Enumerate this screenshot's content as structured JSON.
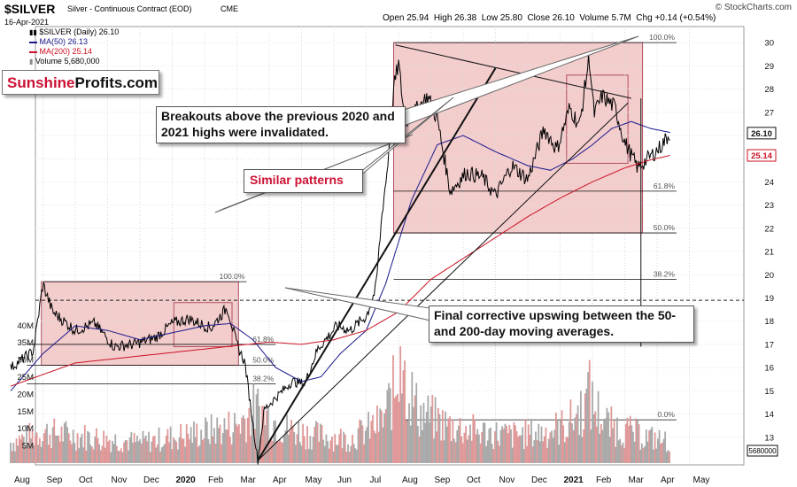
{
  "header": {
    "symbol": "$SILVER",
    "description": "Silver - Continuous Contract (EOD)",
    "exchange": "CME",
    "date": "16-Apr-2021",
    "ohlc": "Open 25.94  High 26.38  Low 25.80  Close 26.10  Volume 5.7M  Chg +0.14 (+0.54%)",
    "watermark": "© StockCharts.com"
  },
  "legend": {
    "main": "$SILVER (Daily) 26.10",
    "ma50": "MA(50) 26.13",
    "ma200": "MA(200) 25.14",
    "volume": "Volume 5,680,000"
  },
  "logo": {
    "part1": "Sunshine",
    "part2": "Profits.com"
  },
  "annotations": {
    "breakouts": "Breakouts above the previous 2020 and 2021 highs were invalidated.",
    "similar": "Similar patterns",
    "final": "Final corrective upswing between the 50- and 200-day moving averages."
  },
  "colors": {
    "price": "#000000",
    "ma50": "#1a1a8c",
    "ma200": "#cc1122",
    "zone_fill": "#f3cccc",
    "volume_up": "#a9a9a9",
    "volume_down": "#e09898",
    "accent_red": "#cc1133"
  },
  "chart_data": {
    "type": "line",
    "title": "$SILVER Silver - Continuous Contract (EOD) CME",
    "price_axis": {
      "min": 12,
      "max": 30.5,
      "ticks": [
        13,
        14,
        15,
        16,
        17,
        18,
        19,
        20,
        21,
        22,
        23,
        24,
        25,
        26,
        27,
        28,
        29,
        30
      ]
    },
    "volume_axis": {
      "labels": [
        "5M",
        "10M",
        "15M",
        "20M",
        "25M",
        "30M",
        "35M",
        "40M"
      ],
      "max": 42000000
    },
    "x_labels": [
      "Aug",
      "Sep",
      "Oct",
      "Nov",
      "Dec",
      "2020",
      "Feb",
      "Mar",
      "Apr",
      "May",
      "Jun",
      "Jul",
      "Aug",
      "Sep",
      "Oct",
      "Nov",
      "Dec",
      "2021",
      "Feb",
      "Mar",
      "Apr",
      "May"
    ],
    "price_badges": [
      {
        "value": 26.1,
        "label": "26.10",
        "style": "black"
      },
      {
        "value": 25.14,
        "label": "25.14",
        "style": "red"
      }
    ],
    "volume_badge": {
      "label": "5680000"
    },
    "series": [
      {
        "name": "$SILVER (Daily) 26.10",
        "anchors": [
          {
            "m": 0,
            "v": 16.0
          },
          {
            "m": 0.7,
            "v": 16.7
          },
          {
            "m": 1.0,
            "v": 19.6
          },
          {
            "m": 1.3,
            "v": 18.4
          },
          {
            "m": 2.0,
            "v": 17.6
          },
          {
            "m": 2.6,
            "v": 17.9
          },
          {
            "m": 3.2,
            "v": 16.9
          },
          {
            "m": 3.8,
            "v": 17.0
          },
          {
            "m": 4.5,
            "v": 17.3
          },
          {
            "m": 5.0,
            "v": 17.9
          },
          {
            "m": 5.5,
            "v": 18.1
          },
          {
            "m": 6.2,
            "v": 17.7
          },
          {
            "m": 6.7,
            "v": 18.6
          },
          {
            "m": 7.0,
            "v": 17.0
          },
          {
            "m": 7.25,
            "v": 16.2
          },
          {
            "m": 7.5,
            "v": 13.5
          },
          {
            "m": 7.65,
            "v": 12.0
          },
          {
            "m": 7.85,
            "v": 14.2
          },
          {
            "m": 8.2,
            "v": 14.7
          },
          {
            "m": 8.7,
            "v": 15.4
          },
          {
            "m": 9.1,
            "v": 15.3
          },
          {
            "m": 9.5,
            "v": 16.8
          },
          {
            "m": 10.1,
            "v": 17.8
          },
          {
            "m": 10.5,
            "v": 17.6
          },
          {
            "m": 11.0,
            "v": 18.2
          },
          {
            "m": 11.3,
            "v": 19.4
          },
          {
            "m": 11.5,
            "v": 22.8
          },
          {
            "m": 11.65,
            "v": 24.5
          },
          {
            "m": 11.85,
            "v": 28.0
          },
          {
            "m": 12.0,
            "v": 29.1
          },
          {
            "m": 12.2,
            "v": 26.6
          },
          {
            "m": 12.5,
            "v": 27.0
          },
          {
            "m": 12.9,
            "v": 27.7
          },
          {
            "m": 13.2,
            "v": 26.7
          },
          {
            "m": 13.6,
            "v": 23.6
          },
          {
            "m": 14.1,
            "v": 24.4
          },
          {
            "m": 14.6,
            "v": 24.2
          },
          {
            "m": 15.0,
            "v": 23.4
          },
          {
            "m": 15.5,
            "v": 24.7
          },
          {
            "m": 16.0,
            "v": 24.1
          },
          {
            "m": 16.5,
            "v": 26.3
          },
          {
            "m": 16.9,
            "v": 25.4
          },
          {
            "m": 17.3,
            "v": 27.2
          },
          {
            "m": 17.6,
            "v": 26.4
          },
          {
            "m": 17.9,
            "v": 29.4
          },
          {
            "m": 18.05,
            "v": 26.9
          },
          {
            "m": 18.3,
            "v": 27.7
          },
          {
            "m": 18.7,
            "v": 27.2
          },
          {
            "m": 19.0,
            "v": 25.7
          },
          {
            "m": 19.4,
            "v": 24.6
          },
          {
            "m": 19.8,
            "v": 25.1
          },
          {
            "m": 20.1,
            "v": 25.5
          },
          {
            "m": 20.4,
            "v": 26.1
          }
        ]
      },
      {
        "name": "MA(50) 26.13",
        "anchors": [
          {
            "m": 0,
            "v": 15.0
          },
          {
            "m": 1.0,
            "v": 16.6
          },
          {
            "m": 2.0,
            "v": 17.8
          },
          {
            "m": 3.0,
            "v": 17.6
          },
          {
            "m": 4.0,
            "v": 17.2
          },
          {
            "m": 5.0,
            "v": 17.5
          },
          {
            "m": 6.0,
            "v": 17.8
          },
          {
            "m": 6.8,
            "v": 17.9
          },
          {
            "m": 7.5,
            "v": 17.2
          },
          {
            "m": 8.2,
            "v": 16.0
          },
          {
            "m": 9.0,
            "v": 15.4
          },
          {
            "m": 9.6,
            "v": 15.6
          },
          {
            "m": 10.2,
            "v": 16.6
          },
          {
            "m": 11.0,
            "v": 17.6
          },
          {
            "m": 11.6,
            "v": 19.6
          },
          {
            "m": 12.4,
            "v": 23.2
          },
          {
            "m": 13.2,
            "v": 25.6
          },
          {
            "m": 14.0,
            "v": 26.0
          },
          {
            "m": 15.0,
            "v": 25.3
          },
          {
            "m": 16.0,
            "v": 24.7
          },
          {
            "m": 16.7,
            "v": 24.5
          },
          {
            "m": 17.4,
            "v": 25.0
          },
          {
            "m": 18.0,
            "v": 25.6
          },
          {
            "m": 18.6,
            "v": 26.3
          },
          {
            "m": 19.2,
            "v": 26.6
          },
          {
            "m": 19.8,
            "v": 26.3
          },
          {
            "m": 20.4,
            "v": 26.13
          }
        ]
      },
      {
        "name": "MA(200) 25.14",
        "anchors": [
          {
            "m": 0,
            "v": 15.2
          },
          {
            "m": 2.0,
            "v": 16.2
          },
          {
            "m": 4.0,
            "v": 16.5
          },
          {
            "m": 6.0,
            "v": 16.8
          },
          {
            "m": 8.0,
            "v": 17.1
          },
          {
            "m": 9.0,
            "v": 17.0
          },
          {
            "m": 10.0,
            "v": 17.2
          },
          {
            "m": 11.0,
            "v": 17.6
          },
          {
            "m": 12.0,
            "v": 18.4
          },
          {
            "m": 13.0,
            "v": 19.8
          },
          {
            "m": 14.0,
            "v": 20.7
          },
          {
            "m": 15.0,
            "v": 21.6
          },
          {
            "m": 16.0,
            "v": 22.5
          },
          {
            "m": 17.0,
            "v": 23.3
          },
          {
            "m": 18.0,
            "v": 24.0
          },
          {
            "m": 19.0,
            "v": 24.6
          },
          {
            "m": 19.8,
            "v": 24.95
          },
          {
            "m": 20.4,
            "v": 25.14
          }
        ]
      }
    ],
    "volume_profile": [
      {
        "m": 0,
        "v": 6000000
      },
      {
        "m": 1,
        "v": 9000000
      },
      {
        "m": 2,
        "v": 8000000
      },
      {
        "m": 3,
        "v": 7000000
      },
      {
        "m": 4,
        "v": 6000000
      },
      {
        "m": 5,
        "v": 7500000
      },
      {
        "m": 6,
        "v": 9000000
      },
      {
        "m": 7,
        "v": 11000000
      },
      {
        "m": 7.6,
        "v": 16000000
      },
      {
        "m": 8.5,
        "v": 10000000
      },
      {
        "m": 9.5,
        "v": 8000000
      },
      {
        "m": 10.5,
        "v": 7000000
      },
      {
        "m": 11.5,
        "v": 12000000
      },
      {
        "m": 12.1,
        "v": 27000000
      },
      {
        "m": 12.6,
        "v": 15000000
      },
      {
        "m": 13.5,
        "v": 11000000
      },
      {
        "m": 14.5,
        "v": 9000000
      },
      {
        "m": 15.5,
        "v": 8000000
      },
      {
        "m": 16.5,
        "v": 9000000
      },
      {
        "m": 17.2,
        "v": 11000000
      },
      {
        "m": 17.9,
        "v": 18000000
      },
      {
        "m": 18.5,
        "v": 11000000
      },
      {
        "m": 19.5,
        "v": 8000000
      },
      {
        "m": 20.4,
        "v": 6000000
      }
    ],
    "volume_spikes": [
      {
        "m": 12.05,
        "v": 34000000
      },
      {
        "m": 12.15,
        "v": 27000000
      },
      {
        "m": 17.9,
        "v": 30000000
      },
      {
        "m": 7.6,
        "v": 20000000
      },
      {
        "m": 11.9,
        "v": 19000000
      }
    ],
    "dashed_level": 18.9,
    "zones": [
      {
        "from_m": 0.95,
        "to_m": 7.05,
        "top": 19.7,
        "bottom": 16.1
      },
      {
        "from_m": 5.05,
        "to_m": 6.85,
        "top": 18.8,
        "bottom": 16.9
      },
      {
        "from_m": 11.85,
        "to_m": 19.55,
        "top": 30.0,
        "bottom": 21.8
      },
      {
        "from_m": 17.2,
        "to_m": 19.1,
        "top": 28.6,
        "bottom": 24.8
      }
    ],
    "fibonacci": [
      {
        "label": "100.0%",
        "value": 19.7,
        "from_m": 1.0,
        "to_m": 7.3
      },
      {
        "label": "61.8%",
        "value": 17.0,
        "from_m": 0.5,
        "to_m": 8.2
      },
      {
        "label": "50.0%",
        "value": 16.1,
        "from_m": 0.5,
        "to_m": 8.2
      },
      {
        "label": "38.2%",
        "value": 15.3,
        "from_m": 0.5,
        "to_m": 8.2
      },
      {
        "label": "0.0%",
        "value": 12.3,
        "from_m": 0.3,
        "to_m": 8.2
      },
      {
        "label": "100.0%",
        "value": 30.0,
        "from_m": 11.85,
        "to_m": 20.6
      },
      {
        "label": "61.8%",
        "value": 23.6,
        "from_m": 11.85,
        "to_m": 20.6
      },
      {
        "label": "50.0%",
        "value": 21.8,
        "from_m": 11.85,
        "to_m": 20.6
      },
      {
        "label": "38.2%",
        "value": 19.8,
        "from_m": 11.85,
        "to_m": 20.6
      },
      {
        "label": "0.0%",
        "value": 13.75,
        "from_m": 11.85,
        "to_m": 20.6
      }
    ],
    "trendlines": [
      {
        "from": {
          "m": 7.65,
          "v": 12.0
        },
        "to": {
          "m": 15.0,
          "v": 28.9
        },
        "weight": "thick"
      },
      {
        "from": {
          "m": 7.65,
          "v": 12.0
        },
        "to": {
          "m": 19.1,
          "v": 27.4
        },
        "weight": "thin"
      },
      {
        "from": {
          "m": 11.9,
          "v": 29.9
        },
        "to": {
          "m": 19.2,
          "v": 27.6
        },
        "weight": "thin"
      },
      {
        "from": {
          "m": 19.5,
          "v": 27.6
        },
        "to": {
          "m": 19.5,
          "v": 16.9
        },
        "weight": "thin"
      }
    ]
  }
}
